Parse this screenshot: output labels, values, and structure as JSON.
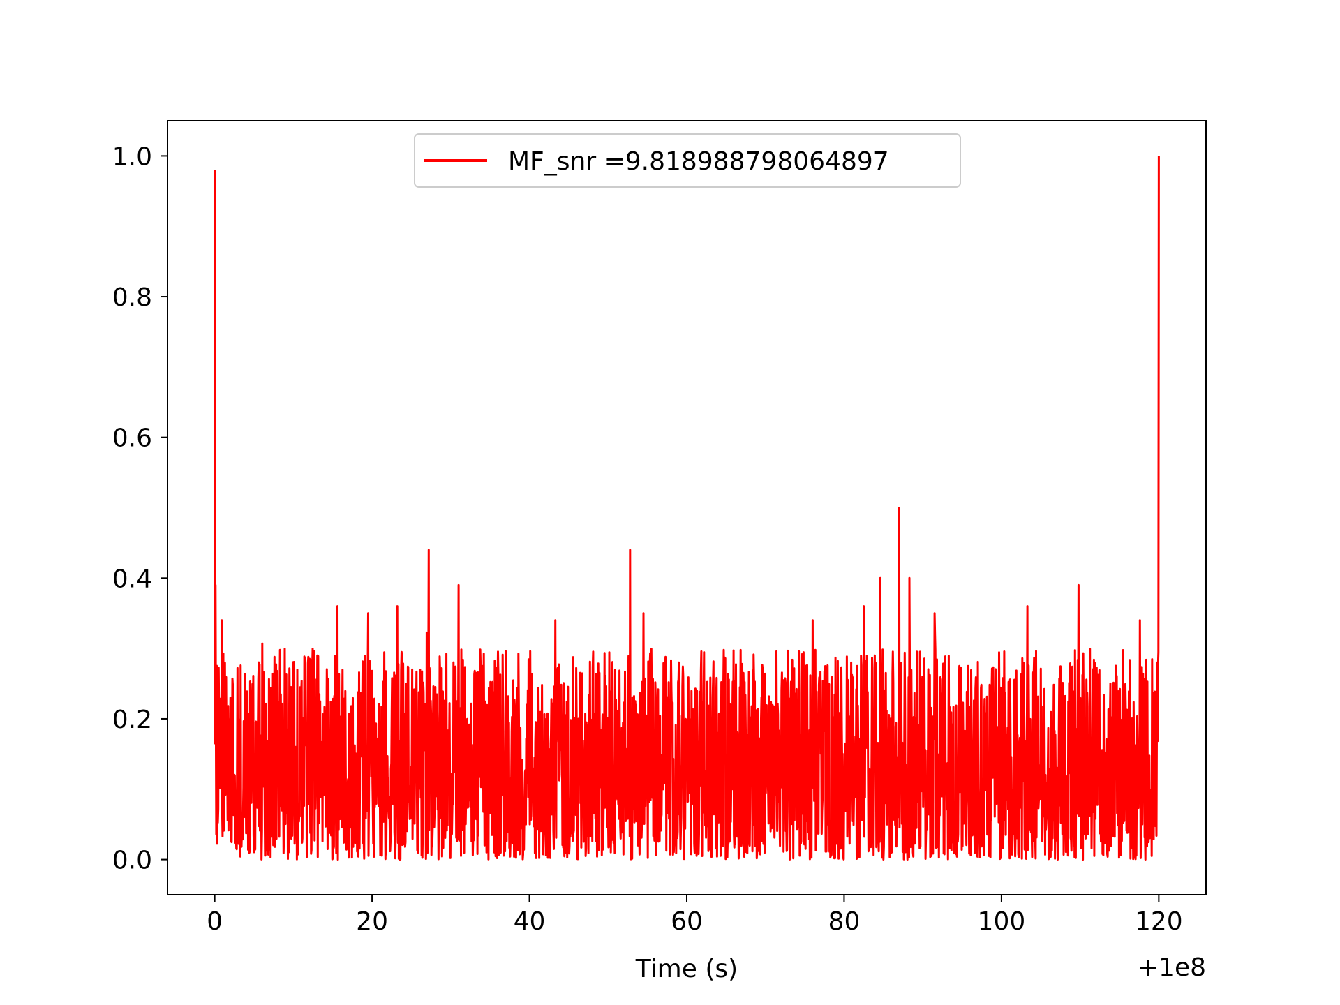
{
  "chart_data": {
    "type": "line",
    "title": "",
    "xlabel": "Time (s)",
    "ylabel": "",
    "x_offset_label": "+1e8",
    "xlim": [
      -6,
      126
    ],
    "ylim": [
      -0.05,
      1.05
    ],
    "x_ticks": [
      0,
      20,
      40,
      60,
      80,
      100,
      120
    ],
    "x_tick_labels": [
      "0",
      "20",
      "40",
      "60",
      "80",
      "100",
      "120"
    ],
    "y_ticks": [
      0.0,
      0.2,
      0.4,
      0.6,
      0.8,
      1.0
    ],
    "y_tick_labels": [
      "0.0",
      "0.2",
      "0.4",
      "0.6",
      "0.8",
      "1.0"
    ],
    "grid": false,
    "legend_position": "upper center",
    "series": [
      {
        "name": "MF_snr =9.818988798064897",
        "color": "#ff0000",
        "x_start": 0,
        "x_end": 120,
        "noise_range": [
          0.0,
          0.3
        ],
        "peaks": [
          {
            "x": 0.0,
            "y": 0.98
          },
          {
            "x": 0.1,
            "y": 0.39
          },
          {
            "x": 0.9,
            "y": 0.34
          },
          {
            "x": 15.6,
            "y": 0.36
          },
          {
            "x": 19.5,
            "y": 0.35
          },
          {
            "x": 23.2,
            "y": 0.36
          },
          {
            "x": 27.2,
            "y": 0.44
          },
          {
            "x": 31.0,
            "y": 0.39
          },
          {
            "x": 43.3,
            "y": 0.34
          },
          {
            "x": 52.8,
            "y": 0.44
          },
          {
            "x": 54.5,
            "y": 0.35
          },
          {
            "x": 76.0,
            "y": 0.34
          },
          {
            "x": 82.5,
            "y": 0.36
          },
          {
            "x": 84.6,
            "y": 0.4
          },
          {
            "x": 87.0,
            "y": 0.5
          },
          {
            "x": 88.3,
            "y": 0.4
          },
          {
            "x": 91.5,
            "y": 0.35
          },
          {
            "x": 103.3,
            "y": 0.36
          },
          {
            "x": 109.8,
            "y": 0.39
          },
          {
            "x": 117.6,
            "y": 0.34
          },
          {
            "x": 120.0,
            "y": 1.0
          }
        ]
      }
    ]
  }
}
